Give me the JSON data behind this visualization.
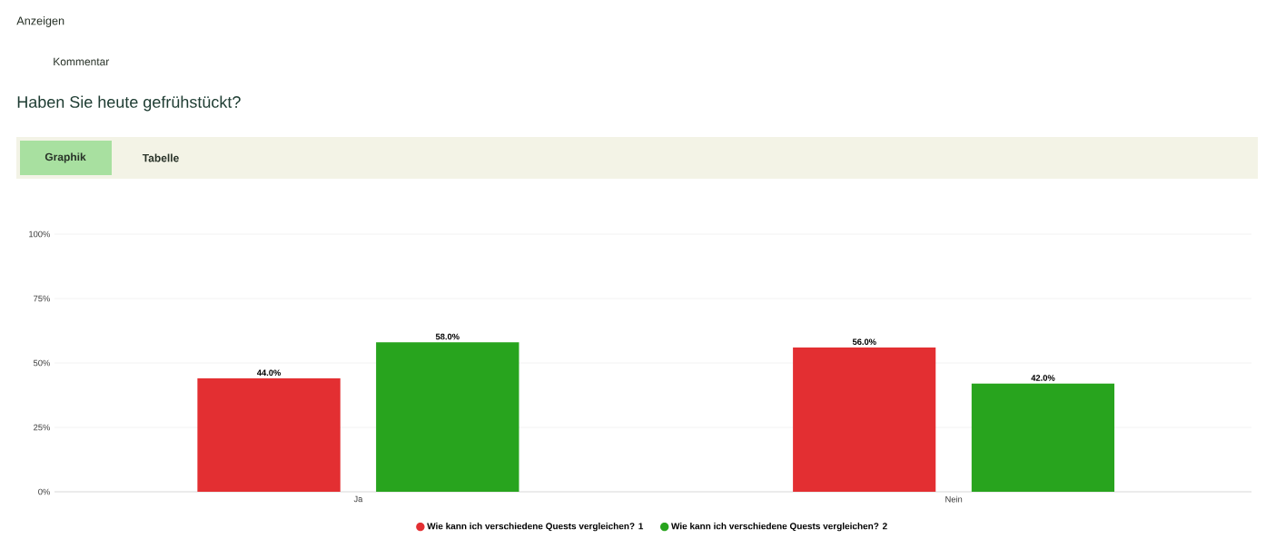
{
  "chart_data": {
    "type": "bar",
    "title": "Haben Sie heute gefrühstückt?",
    "annotations": [
      "Anzeigen",
      "Kommentar",
      "Graphik",
      "Tabelle"
    ],
    "categories": [
      "Ja",
      "Nein"
    ],
    "series": [
      {
        "name": "Wie kann ich verschiedene Quests vergleichen? 1",
        "color": "#e32f32",
        "values": [
          44.0,
          56.0
        ],
        "value_labels": [
          "44.0%",
          "56.0%"
        ]
      },
      {
        "name": "Wie kann ich verschiedene Quests vergleichen? 2",
        "color": "#28a41e",
        "values": [
          58.0,
          42.0
        ],
        "value_labels": [
          "58.0%",
          "42.0%"
        ]
      }
    ],
    "ylim": [
      0,
      100
    ],
    "yticks": [
      {
        "value": 0,
        "label": "0%"
      },
      {
        "value": 25,
        "label": "25%"
      },
      {
        "value": 50,
        "label": "50%"
      },
      {
        "value": 75,
        "label": "75%"
      },
      {
        "value": 100,
        "label": "100%"
      }
    ],
    "grid": "y",
    "legend": "bottom"
  }
}
